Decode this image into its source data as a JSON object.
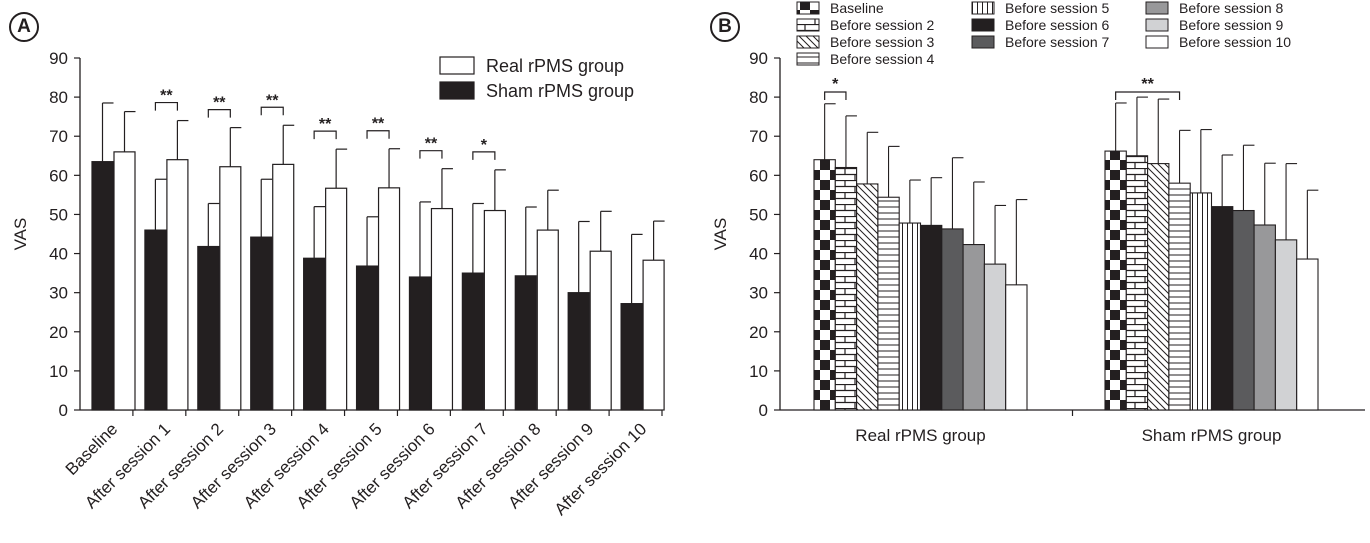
{
  "panels": {
    "a_label": "A",
    "b_label": "B"
  },
  "chart_data": [
    {
      "type": "bar",
      "ylabel": "VAS",
      "ylim": [
        0,
        90
      ],
      "yticks": [
        0,
        10,
        20,
        30,
        40,
        50,
        60,
        70,
        80,
        90
      ],
      "categories": [
        "Baseline",
        "After session 1",
        "After session 2",
        "After session 3",
        "After session 4",
        "After session 5",
        "After session 6",
        "After session 7",
        "After session 8",
        "After session 9",
        "After session 10"
      ],
      "series": [
        {
          "name": "Sham rPMS group",
          "color": "#231f20",
          "values": [
            63.5,
            46,
            41.8,
            44.2,
            38.8,
            36.8,
            34,
            35,
            34.3,
            30,
            27.2
          ],
          "error": [
            15,
            13,
            11,
            14.8,
            13.2,
            12.6,
            19.2,
            17.8,
            17.6,
            18.2,
            17.7
          ]
        },
        {
          "name": "Real rPMS group",
          "color": "#ffffff",
          "values": [
            66,
            64,
            62.2,
            62.8,
            56.7,
            56.8,
            51.5,
            51,
            46,
            40.6,
            38.3
          ],
          "error": [
            10.3,
            10,
            10,
            10,
            10,
            10,
            10.2,
            10.4,
            10.2,
            10.2,
            10
          ]
        }
      ],
      "legend": [
        "Real rPMS group",
        "Sham rPMS group"
      ],
      "legend_position": "top-right",
      "significance": [
        {
          "category_index": 1,
          "text": "**"
        },
        {
          "category_index": 2,
          "text": "**"
        },
        {
          "category_index": 3,
          "text": "**"
        },
        {
          "category_index": 4,
          "text": "**"
        },
        {
          "category_index": 5,
          "text": "**"
        },
        {
          "category_index": 6,
          "text": "**"
        },
        {
          "category_index": 7,
          "text": "*"
        }
      ]
    },
    {
      "type": "bar",
      "ylabel": "VAS",
      "ylim": [
        0,
        90
      ],
      "yticks": [
        0,
        10,
        20,
        30,
        40,
        50,
        60,
        70,
        80,
        90
      ],
      "categories": [
        "Real rPMS group",
        "Sham rPMS group"
      ],
      "series": [
        {
          "name": "Baseline",
          "pattern": "checker",
          "values": [
            64,
            66.2
          ],
          "error": [
            14.3,
            12.3
          ]
        },
        {
          "name": "Before session 2",
          "pattern": "brick",
          "values": [
            62,
            65
          ],
          "error": [
            13.2,
            15
          ]
        },
        {
          "name": "Before session 3",
          "pattern": "diagonal",
          "values": [
            57.8,
            63
          ],
          "error": [
            13.2,
            16.5
          ]
        },
        {
          "name": "Before session 4",
          "pattern": "hlines",
          "values": [
            54.4,
            58
          ],
          "error": [
            13,
            13.5
          ]
        },
        {
          "name": "Before session 5",
          "pattern": "vlines",
          "values": [
            47.8,
            55.5
          ],
          "error": [
            11,
            16.2
          ]
        },
        {
          "name": "Before session 6",
          "pattern": "black",
          "values": [
            47.2,
            52
          ],
          "error": [
            12.2,
            13.2
          ]
        },
        {
          "name": "Before session 7",
          "pattern": "darkgray",
          "values": [
            46.3,
            51
          ],
          "error": [
            18.2,
            16.7
          ]
        },
        {
          "name": "Before session 8",
          "pattern": "gray",
          "values": [
            42.3,
            47.3
          ],
          "error": [
            16,
            15.8
          ]
        },
        {
          "name": "Before session 9",
          "pattern": "lightgray",
          "values": [
            37.3,
            43.5
          ],
          "error": [
            15,
            19.5
          ]
        },
        {
          "name": "Before session 10",
          "pattern": "white",
          "values": [
            32,
            38.6
          ],
          "error": [
            21.8,
            17.6
          ]
        }
      ],
      "legend_position": "top",
      "significance": [
        {
          "category_index": 0,
          "from_series": 0,
          "to_series": 1,
          "text": "*"
        },
        {
          "category_index": 1,
          "from_series": 0,
          "to_series": 3,
          "text": "**"
        }
      ]
    }
  ]
}
